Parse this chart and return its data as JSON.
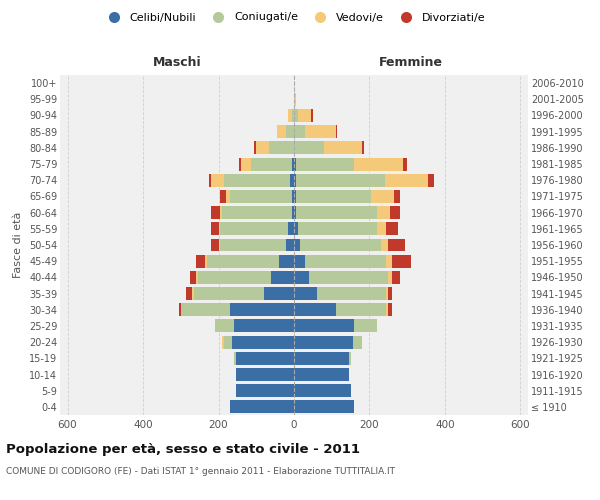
{
  "age_groups": [
    "100+",
    "95-99",
    "90-94",
    "85-89",
    "80-84",
    "75-79",
    "70-74",
    "65-69",
    "60-64",
    "55-59",
    "50-54",
    "45-49",
    "40-44",
    "35-39",
    "30-34",
    "25-29",
    "20-24",
    "15-19",
    "10-14",
    "5-9",
    "0-4"
  ],
  "birth_years": [
    "≤ 1910",
    "1911-1915",
    "1916-1920",
    "1921-1925",
    "1926-1930",
    "1931-1935",
    "1936-1940",
    "1941-1945",
    "1946-1950",
    "1951-1955",
    "1956-1960",
    "1961-1965",
    "1966-1970",
    "1971-1975",
    "1976-1980",
    "1981-1985",
    "1986-1990",
    "1991-1995",
    "1996-2000",
    "2001-2005",
    "2006-2010"
  ],
  "male": {
    "celibe": [
      0,
      0,
      0,
      0,
      0,
      5,
      10,
      5,
      5,
      15,
      20,
      40,
      60,
      80,
      170,
      160,
      165,
      155,
      155,
      155,
      170
    ],
    "coniugato": [
      0,
      0,
      5,
      20,
      65,
      110,
      175,
      165,
      185,
      180,
      175,
      190,
      195,
      185,
      130,
      50,
      20,
      5,
      0,
      0,
      0
    ],
    "vedovo": [
      0,
      0,
      10,
      25,
      35,
      25,
      35,
      10,
      5,
      5,
      5,
      5,
      5,
      5,
      0,
      0,
      5,
      0,
      0,
      0,
      0
    ],
    "divorziato": [
      0,
      0,
      0,
      0,
      5,
      5,
      5,
      15,
      25,
      20,
      20,
      25,
      15,
      15,
      5,
      0,
      0,
      0,
      0,
      0,
      0
    ]
  },
  "female": {
    "nubile": [
      0,
      0,
      0,
      0,
      0,
      5,
      5,
      5,
      5,
      10,
      15,
      30,
      40,
      60,
      110,
      160,
      155,
      145,
      145,
      150,
      160
    ],
    "coniugata": [
      0,
      0,
      10,
      30,
      80,
      155,
      235,
      200,
      215,
      210,
      215,
      215,
      210,
      185,
      135,
      60,
      25,
      5,
      0,
      0,
      0
    ],
    "vedova": [
      0,
      5,
      35,
      80,
      100,
      130,
      115,
      60,
      35,
      25,
      20,
      15,
      10,
      5,
      5,
      0,
      0,
      0,
      0,
      0,
      0
    ],
    "divorziata": [
      0,
      0,
      5,
      5,
      5,
      10,
      15,
      15,
      25,
      30,
      45,
      50,
      20,
      10,
      10,
      0,
      0,
      0,
      0,
      0,
      0
    ]
  },
  "colors": {
    "celibe": "#3a6ea5",
    "coniugato": "#b5c99a",
    "vedovo": "#f5c97a",
    "divorziato": "#c0392b"
  },
  "title": "Popolazione per età, sesso e stato civile - 2011",
  "subtitle": "COMUNE DI CODIGORO (FE) - Dati ISTAT 1° gennaio 2011 - Elaborazione TUTTITALIA.IT",
  "xlabel_left": "Maschi",
  "xlabel_right": "Femmine",
  "ylabel_left": "Fasce di età",
  "xlim": 620,
  "bg_color": "#f0f0f0",
  "legend_labels": [
    "Celibi/Nubili",
    "Coniugati/e",
    "Vedovi/e",
    "Divorziati/e"
  ]
}
